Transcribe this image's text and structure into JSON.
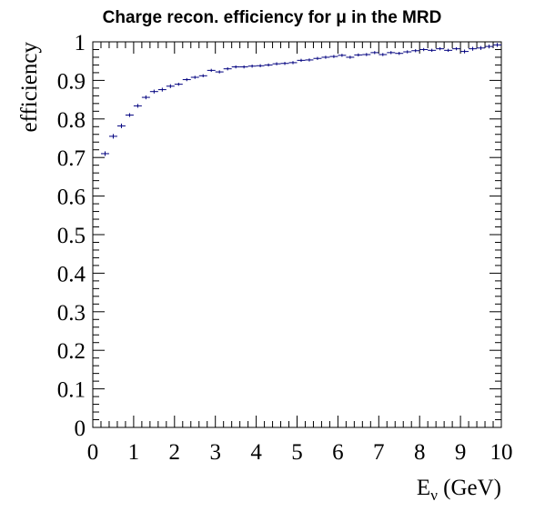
{
  "chart_data": {
    "type": "scatter",
    "title": "Charge recon. efficiency for μ in the MRD",
    "xlabel": "E",
    "xlabel_subscript": "ν",
    "xlabel_suffix": " (GeV)",
    "ylabel": "efficiency",
    "xlim": [
      0,
      10
    ],
    "ylim": [
      0,
      1
    ],
    "x_ticks": [
      "0",
      "1",
      "2",
      "3",
      "4",
      "5",
      "6",
      "7",
      "8",
      "9",
      "10"
    ],
    "y_ticks": [
      "0",
      "0.1",
      "0.2",
      "0.3",
      "0.4",
      "0.5",
      "0.6",
      "0.7",
      "0.8",
      "0.9",
      "1"
    ],
    "grid": false,
    "marker_color": "#00007f",
    "series": [
      {
        "bin_width": 0.2,
        "x": [
          0.3,
          0.5,
          0.7,
          0.9,
          1.1,
          1.3,
          1.5,
          1.7,
          1.9,
          2.1,
          2.3,
          2.5,
          2.7,
          2.9,
          3.1,
          3.3,
          3.5,
          3.7,
          3.9,
          4.1,
          4.3,
          4.5,
          4.7,
          4.9,
          5.1,
          5.3,
          5.5,
          5.7,
          5.9,
          6.1,
          6.3,
          6.5,
          6.7,
          6.9,
          7.1,
          7.3,
          7.5,
          7.7,
          7.9,
          8.1,
          8.3,
          8.5,
          8.7,
          8.9,
          9.1,
          9.3,
          9.5,
          9.7,
          9.9
        ],
        "y": [
          0.71,
          0.755,
          0.782,
          0.81,
          0.834,
          0.856,
          0.871,
          0.876,
          0.885,
          0.89,
          0.902,
          0.908,
          0.912,
          0.926,
          0.922,
          0.93,
          0.935,
          0.935,
          0.937,
          0.938,
          0.94,
          0.943,
          0.944,
          0.946,
          0.952,
          0.953,
          0.957,
          0.96,
          0.962,
          0.965,
          0.96,
          0.966,
          0.967,
          0.972,
          0.967,
          0.972,
          0.97,
          0.974,
          0.977,
          0.98,
          0.978,
          0.982,
          0.978,
          0.982,
          0.975,
          0.982,
          0.984,
          0.988,
          0.992
        ],
        "err": [
          0.006,
          0.006,
          0.006,
          0.005,
          0.005,
          0.005,
          0.005,
          0.005,
          0.005,
          0.004,
          0.004,
          0.004,
          0.004,
          0.004,
          0.004,
          0.004,
          0.004,
          0.004,
          0.004,
          0.004,
          0.004,
          0.004,
          0.004,
          0.004,
          0.004,
          0.004,
          0.004,
          0.004,
          0.004,
          0.004,
          0.004,
          0.004,
          0.004,
          0.004,
          0.004,
          0.004,
          0.004,
          0.004,
          0.004,
          0.004,
          0.004,
          0.004,
          0.004,
          0.004,
          0.005,
          0.005,
          0.005,
          0.005,
          0.005
        ]
      }
    ]
  }
}
